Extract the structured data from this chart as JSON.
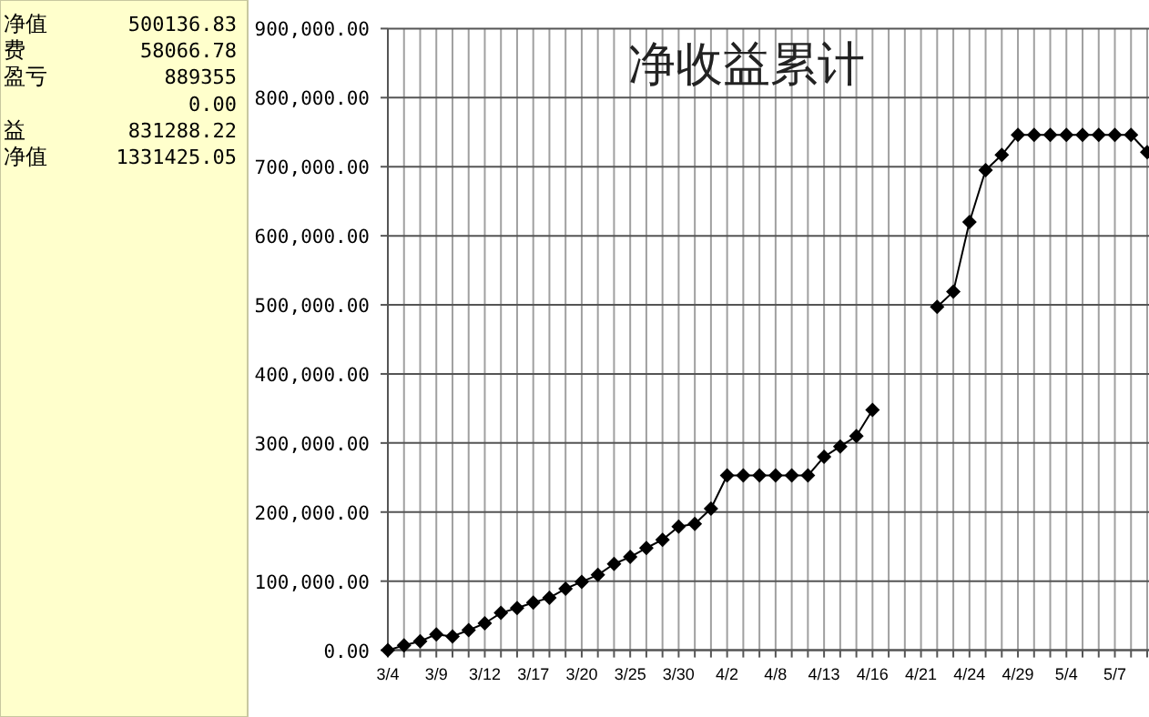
{
  "chart_data": [
    {
      "type": "other",
      "annotations": [
        "净值",
        "500136.83",
        "费",
        "58066.78",
        "盈亏",
        "889355",
        "0.00",
        "益",
        "831288.22",
        "净值",
        "1331425.05"
      ]
    },
    {
      "type": "line",
      "title": "净收益累计",
      "categories": [
        "3/4",
        null,
        null,
        "3/9",
        null,
        null,
        "3/12",
        null,
        null,
        "3/17",
        null,
        null,
        "3/20",
        null,
        null,
        "3/25",
        null,
        null,
        "3/30",
        null,
        null,
        "4/2",
        null,
        null,
        "4/8",
        null,
        null,
        "4/13",
        null,
        null,
        "4/16",
        null,
        null,
        "4/21",
        null,
        null,
        "4/24",
        null,
        null,
        "4/29",
        null,
        null,
        "5/4",
        null,
        null,
        "5/7",
        null,
        null
      ],
      "series": [
        {
          "color": "#000000",
          "values": [
            0,
            7000,
            13000,
            23000,
            20000,
            29000,
            39000,
            54000,
            61000,
            69000,
            76000,
            89000,
            99000,
            109000,
            125000,
            135000,
            148000,
            160000,
            179000,
            183000,
            205000,
            253000,
            253000,
            253000,
            253000,
            253000,
            253000,
            280000,
            295000,
            310000,
            348000,
            null,
            null,
            null,
            497000,
            519000,
            620000,
            695000,
            717000,
            746000,
            746000,
            746000,
            746000,
            746000,
            746000,
            746000,
            746000,
            721000
          ]
        }
      ],
      "ylim": [
        0,
        900000
      ],
      "yticks": [
        {
          "value": 0,
          "label": "0.00"
        },
        {
          "value": 100000,
          "label": "100,000.00"
        },
        {
          "value": 200000,
          "label": "200,000.00"
        },
        {
          "value": 300000,
          "label": "300,000.00"
        },
        {
          "value": 400000,
          "label": "400,000.00"
        },
        {
          "value": 500000,
          "label": "500,000.00"
        },
        {
          "value": 600000,
          "label": "600,000.00"
        },
        {
          "value": 700000,
          "label": "700,000.00"
        },
        {
          "value": 800000,
          "label": "800,000.00"
        },
        {
          "value": 900000,
          "label": "900,000.00"
        }
      ],
      "grid": true,
      "marker": "diamond",
      "line_style": "solid"
    }
  ]
}
